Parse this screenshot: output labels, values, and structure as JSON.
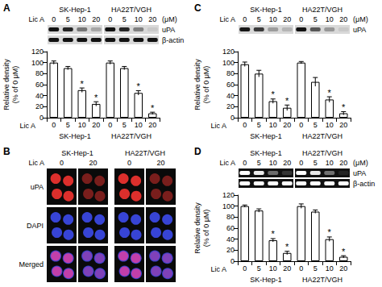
{
  "chart_data": [
    {
      "type": "bar",
      "ylabel": "Relative density (% of 0 μM)",
      "x_label": "Lic A",
      "groups": [
        "SK-Hep-1",
        "HA22T/VGH"
      ],
      "categories": [
        "0",
        "5",
        "10",
        "20",
        "0",
        "5",
        "10",
        "20"
      ],
      "values": [
        100,
        90,
        50,
        25,
        100,
        90,
        45,
        8
      ],
      "errors": [
        3,
        3,
        4,
        4,
        3,
        3,
        4,
        2
      ],
      "significant": [
        false,
        false,
        true,
        true,
        false,
        false,
        true,
        true
      ],
      "significance_label": "*",
      "color": "#ffffff",
      "ylim": [
        0,
        120
      ],
      "yticks": [
        0,
        20,
        40,
        60,
        80,
        100,
        120
      ],
      "grid": false
    },
    {
      "type": "bar",
      "ylabel": "Relative density (% of 0 μM)",
      "x_label": "Lic A",
      "groups": [
        "SK-Hep-1",
        "HA22T/VGH"
      ],
      "categories": [
        "0",
        "5",
        "10",
        "20",
        "0",
        "5",
        "10",
        "20"
      ],
      "values": [
        97,
        80,
        30,
        18,
        100,
        65,
        33,
        8
      ],
      "errors": [
        4,
        6,
        4,
        5,
        2,
        8,
        5,
        3
      ],
      "significant": [
        false,
        false,
        true,
        true,
        false,
        false,
        true,
        true
      ],
      "significance_label": "*",
      "color": "#ffffff",
      "ylim": [
        0,
        120
      ],
      "yticks": [
        0,
        20,
        40,
        60,
        80,
        100,
        120
      ],
      "grid": false
    },
    {
      "type": "bar",
      "ylabel": "Relative density (% of 0 μM)",
      "x_label": "Lic A",
      "groups": [
        "SK-Hep-1",
        "HA22T/VGH"
      ],
      "categories": [
        "0",
        "5",
        "10",
        "20",
        "0",
        "5",
        "10",
        "20"
      ],
      "values": [
        100,
        92,
        38,
        15,
        100,
        90,
        40,
        8
      ],
      "errors": [
        2,
        3,
        3,
        3,
        4,
        3,
        4,
        2
      ],
      "significant": [
        false,
        false,
        true,
        true,
        false,
        false,
        true,
        true
      ],
      "significance_label": "*",
      "color": "#ffffff",
      "ylim": [
        0,
        120
      ],
      "yticks": [
        0,
        20,
        40,
        60,
        80,
        100,
        120
      ],
      "grid": false
    }
  ],
  "figure": {
    "panels": [
      {
        "letter": "A",
        "blot": {
          "treatment": "Lic A",
          "unit": "(μM)",
          "groups": [
            "SK-Hep-1",
            "HA22T/VGH"
          ],
          "doses": [
            "0",
            "5",
            "10",
            "20"
          ],
          "rows": [
            "uPA",
            "β-actin"
          ],
          "negative": false
        }
      },
      {
        "letter": "B",
        "images": {
          "treatment": "Lic A",
          "groups": [
            "SK-Hep-1",
            "HA22T/VGH"
          ],
          "doses": [
            "0",
            "20"
          ],
          "rows": [
            "uPA",
            "DAPI",
            "Merged"
          ]
        }
      },
      {
        "letter": "C",
        "blot": {
          "treatment": "Lic A",
          "unit": "(μM)",
          "groups": [
            "SK-Hep-1",
            "HA22T/VGH"
          ],
          "doses": [
            "0",
            "5",
            "10",
            "20"
          ],
          "rows": [
            "uPA"
          ],
          "negative": false
        }
      },
      {
        "letter": "D",
        "blot": {
          "treatment": "Lic A",
          "unit": "(μM)",
          "groups": [
            "SK-Hep-1",
            "HA22T/VGH"
          ],
          "doses": [
            "0",
            "5",
            "10",
            "20"
          ],
          "rows": [
            "uPA",
            "β-actin"
          ],
          "negative": true
        }
      }
    ]
  }
}
